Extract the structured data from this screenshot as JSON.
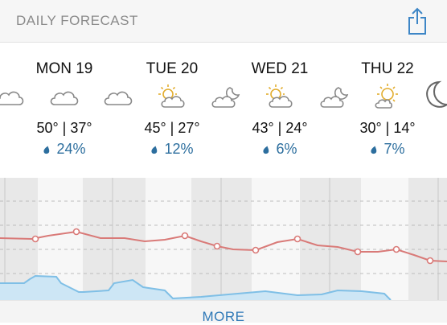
{
  "header": {
    "title": "DAILY FORECAST"
  },
  "days": [
    {
      "name": "MON 19",
      "temps": "50° | 37°",
      "precip": "24%"
    },
    {
      "name": "TUE 20",
      "temps": "45° | 27°",
      "precip": "12%"
    },
    {
      "name": "WED 21",
      "temps": "43° | 24°",
      "precip": "6%"
    },
    {
      "name": "THU 22",
      "temps": "30° | 14°",
      "precip": "7%"
    }
  ],
  "icons": [
    "cloud-icon",
    "cloud-icon",
    "cloud-icon",
    "partly-sunny-icon",
    "partly-cloudy-night-icon",
    "partly-sunny-icon",
    "partly-cloudy-night-icon",
    "partly-sunny-icon",
    "moon-icon"
  ],
  "footer": {
    "more_label": "MORE"
  },
  "colors": {
    "temp_line": "#d97a78",
    "precip_line": "#7fbfe6",
    "precip_fill": "#cde6f5",
    "link": "#2f79b7",
    "precip_text": "#2c6e9e"
  }
}
